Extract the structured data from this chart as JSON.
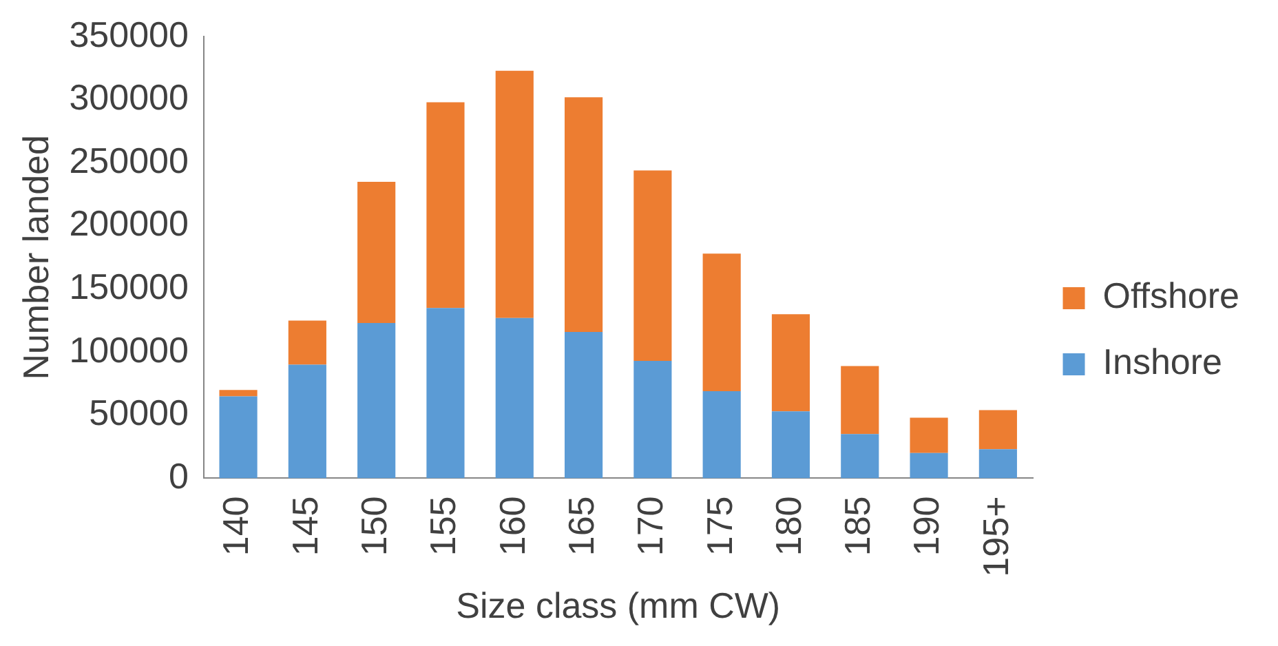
{
  "chart_data": {
    "type": "bar",
    "stacked": true,
    "xlabel": "Size class (mm CW)",
    "ylabel": "Number landed",
    "categories": [
      "140",
      "145",
      "150",
      "155",
      "160",
      "165",
      "170",
      "175",
      "180",
      "185",
      "190",
      "195+"
    ],
    "series": [
      {
        "name": "Inshore",
        "color": "#5b9bd5",
        "values": [
          65000,
          90000,
          123000,
          135000,
          127000,
          116000,
          93000,
          69000,
          53000,
          35000,
          20000,
          23000
        ]
      },
      {
        "name": "Offshore",
        "color": "#ed7d31",
        "values": [
          5000,
          35000,
          112000,
          163000,
          196000,
          186000,
          151000,
          109000,
          77000,
          54000,
          28000,
          31000
        ]
      }
    ],
    "ylim": [
      0,
      350000
    ],
    "yticks": [
      0,
      50000,
      100000,
      150000,
      200000,
      250000,
      300000,
      350000
    ],
    "grid": false,
    "legend": "right"
  }
}
